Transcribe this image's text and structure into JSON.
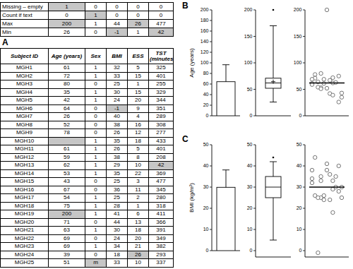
{
  "figure": {
    "panel_labels": [
      "A",
      "B",
      "C"
    ]
  },
  "tables": [
    {
      "rows": [
        [
          "Missing – empty",
          1,
          0,
          0,
          0,
          0
        ],
        [
          "Count if text",
          0,
          1,
          0,
          0,
          0
        ],
        [
          "Max",
          200,
          1,
          44,
          26,
          477
        ],
        [
          "Min",
          26,
          0,
          -1,
          1,
          42
        ]
      ],
      "highlight": [
        [
          0,
          1
        ],
        [
          1,
          2
        ],
        [
          2,
          1
        ],
        [
          2,
          4
        ],
        [
          3,
          3
        ],
        [
          3,
          5
        ]
      ]
    },
    {
      "header": [
        "Subject ID",
        "Age (years)",
        "Sex",
        "BMI",
        "ESS",
        "TST (minutes)"
      ],
      "rows": [
        [
          "MGH1",
          61,
          1,
          32,
          5,
          325
        ],
        [
          "MGH2",
          72,
          1,
          33,
          15,
          401
        ],
        [
          "MGH3",
          80,
          0,
          25,
          1,
          255
        ],
        [
          "MGH4",
          35,
          1,
          30,
          15,
          329
        ],
        [
          "MGH5",
          42,
          1,
          24,
          20,
          344
        ],
        [
          "MGH6",
          64,
          0,
          -1,
          9,
          351
        ],
        [
          "MGH7",
          26,
          0,
          40,
          4,
          289
        ],
        [
          "MGH8",
          52,
          0,
          38,
          16,
          308
        ],
        [
          "MGH9",
          78,
          0,
          26,
          12,
          277
        ],
        [
          "MGH10",
          null,
          1,
          35,
          18,
          433
        ],
        [
          "MGH11",
          61,
          1,
          26,
          5,
          401
        ],
        [
          "MGH12",
          59,
          1,
          38,
          8,
          208
        ],
        [
          "MGH13",
          62,
          1,
          29,
          10,
          42
        ],
        [
          "MGH14",
          53,
          1,
          35,
          22,
          369
        ],
        [
          "MGH15",
          43,
          0,
          25,
          3,
          477
        ],
        [
          "MGH16",
          67,
          0,
          36,
          11,
          345
        ],
        [
          "MGH17",
          54,
          1,
          25,
          2,
          280
        ],
        [
          "MGH18",
          75,
          1,
          28,
          1,
          318
        ],
        [
          "MGH19",
          200,
          1,
          41,
          6,
          411
        ],
        [
          "MGH20",
          71,
          0,
          44,
          13,
          366
        ],
        [
          "MGH21",
          63,
          1,
          30,
          18,
          391
        ],
        [
          "MGH22",
          69,
          0,
          24,
          20,
          349
        ],
        [
          "MGH23",
          69,
          1,
          34,
          21,
          382
        ],
        [
          "MGH24",
          39,
          0,
          18,
          26,
          293
        ],
        [
          "MGH25",
          51,
          "m",
          33,
          10,
          337
        ]
      ],
      "highlight": [
        [
          5,
          3
        ],
        [
          9,
          1
        ],
        [
          12,
          5
        ],
        [
          18,
          1
        ],
        [
          23,
          4
        ],
        [
          24,
          2
        ]
      ]
    }
  ],
  "chart_data": [
    {
      "type": "bar",
      "ylabel": "Age (years)",
      "categories": [
        null
      ],
      "values": [
        64.4
      ],
      "error": [
        32
      ],
      "ylim": [
        0,
        200
      ],
      "yticks": [
        0,
        20,
        40,
        60,
        80,
        100,
        120,
        140,
        160,
        180,
        200
      ]
    },
    {
      "type": "box",
      "whisker_low": 26,
      "q1": 52,
      "median": 62,
      "q3": 71,
      "whisker_high": 170,
      "mean": 64.4,
      "outliers": [
        200
      ],
      "ylim": [
        0,
        200
      ],
      "yticks": [
        0,
        50,
        100,
        150,
        200
      ]
    },
    {
      "type": "dot",
      "values": [
        61,
        72,
        80,
        35,
        42,
        64,
        26,
        52,
        78,
        null,
        61,
        59,
        62,
        53,
        43,
        67,
        54,
        75,
        200,
        71,
        63,
        69,
        69,
        39,
        51
      ],
      "median": 62,
      "ylim": [
        0,
        200
      ],
      "yticks": [
        0,
        50,
        100,
        150,
        200
      ]
    },
    {
      "type": "bar",
      "ylabel": "BMI (kg/m²)",
      "categories": [
        null
      ],
      "values": [
        29.9
      ],
      "error": [
        8.2
      ],
      "ylim": [
        0,
        50
      ],
      "yticks": [
        0,
        10,
        20,
        30,
        40,
        50
      ]
    },
    {
      "type": "box",
      "whisker_low": 5,
      "q1": 25,
      "median": 30,
      "q3": 35,
      "whisker_high": 42,
      "outliers": [
        44
      ],
      "ylim": [
        -3,
        50
      ],
      "yticks": [
        0,
        10,
        20,
        30,
        40,
        50
      ]
    },
    {
      "type": "dot",
      "values": [
        32,
        33,
        25,
        30,
        24,
        -1,
        40,
        38,
        26,
        35,
        26,
        38,
        29,
        35,
        25,
        36,
        25,
        28,
        41,
        44,
        30,
        24,
        34,
        18,
        33
      ],
      "median": 30,
      "ylim": [
        -3,
        50
      ],
      "yticks": [
        0,
        10,
        20,
        30,
        40,
        50
      ]
    }
  ]
}
